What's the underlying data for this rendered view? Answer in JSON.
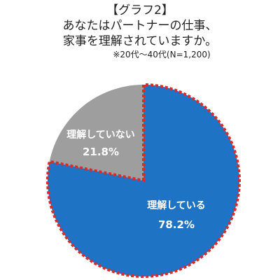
{
  "chart_data": {
    "type": "pie",
    "title_lines": [
      "【グラフ2】",
      "あなたはパートナーの仕事、",
      "家事を理解されていますか。"
    ],
    "subtitle": "※20代～40代(N=1,200)",
    "slices": [
      {
        "label": "理解している",
        "value": 78.2,
        "value_label": "78.2%",
        "color": "#1f73c4"
      },
      {
        "label": "理解していない",
        "value": 21.8,
        "value_label": "21.8%",
        "color": "#9e9e9e"
      }
    ],
    "highlight_border": {
      "color": "#d62c2c",
      "style": "dashed",
      "applies_to": "理解している"
    },
    "legend": "none"
  }
}
